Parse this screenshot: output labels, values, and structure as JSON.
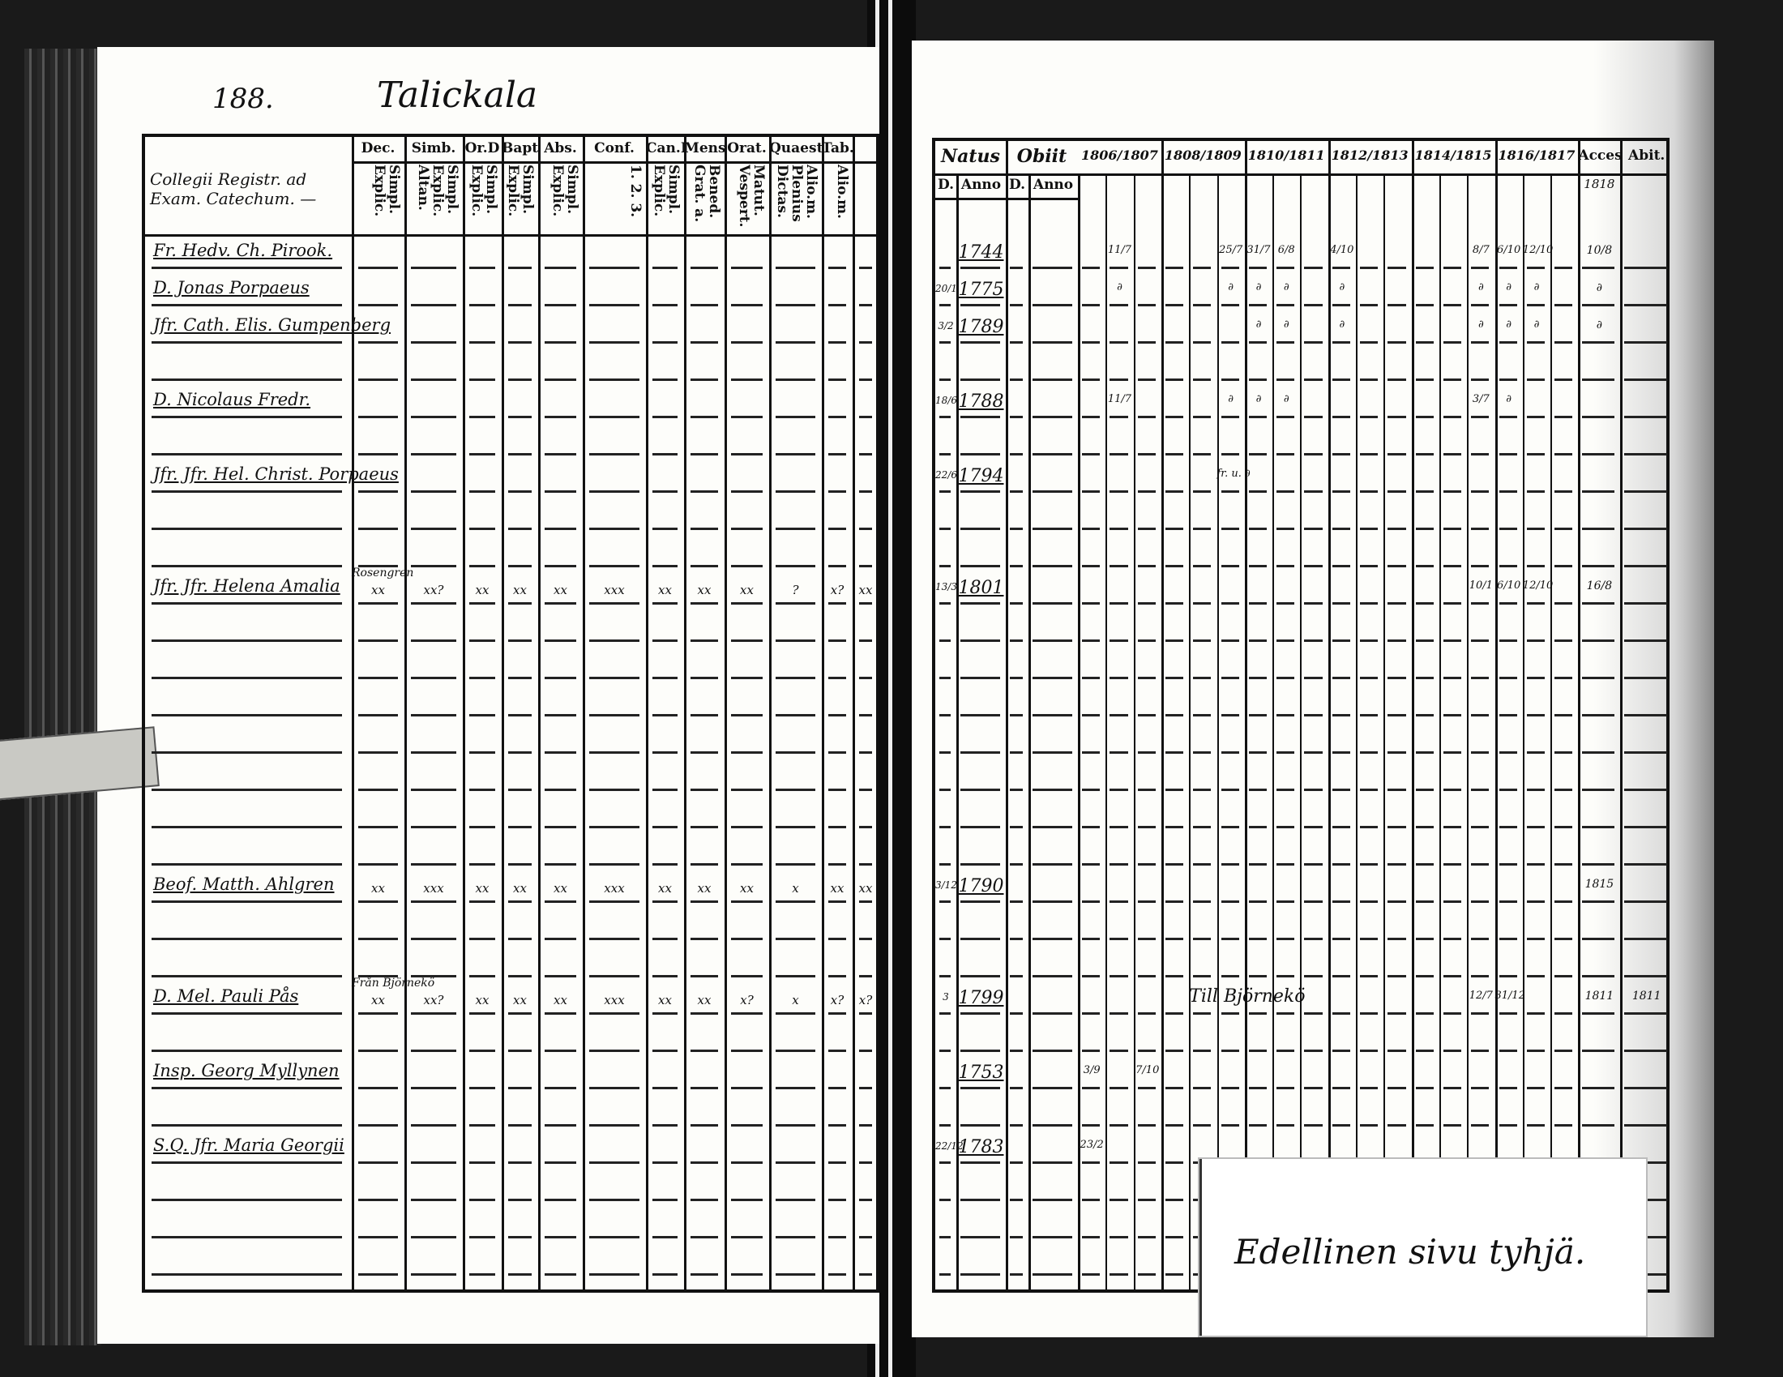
{
  "left_page": {
    "page_number": "188.",
    "village": "Talickala",
    "name_header": "Collegii Registr. ad Exam. Catechum. —",
    "columns": [
      {
        "head": "Dec.",
        "sub": "Simpl. Explic."
      },
      {
        "head": "Simb.",
        "sub": "Simpl. Explic. Altan."
      },
      {
        "head": "Or.D",
        "sub": "Simpl. Explic."
      },
      {
        "head": "Bapt.",
        "sub": "Simpl. Explic."
      },
      {
        "head": "Abs.",
        "sub": "Simpl. Explic."
      },
      {
        "head": "Conf.",
        "sub": "1. 2. 3."
      },
      {
        "head": "Can.D.",
        "sub": "Simpl. Explic."
      },
      {
        "head": "Mens.",
        "sub": "Bened. Grat. a."
      },
      {
        "head": "Orat.",
        "sub": "Matut. Vespert."
      },
      {
        "head": "Quaest.",
        "sub": "Alio.m. Plenius Dictas."
      },
      {
        "head": "Tab.",
        "sub": "Alio.m."
      },
      {
        "head": "",
        "sub": ""
      }
    ],
    "rows": [
      {
        "row": 0,
        "name": "Fr. Hedv. Ch. Pirook."
      },
      {
        "row": 1,
        "name": "D. Jonas Porpaeus"
      },
      {
        "row": 2,
        "name": "Jfr. Cath. Elis. Gumpenberg"
      },
      {
        "row": 4,
        "name": "D. Nicolaus Fredr."
      },
      {
        "row": 6,
        "name": "Jfr. Jfr. Hel. Christ. Porpaeus"
      },
      {
        "row": 9,
        "name": "Jfr. Jfr. Helena Amalia",
        "note": "Rosengren",
        "marks": [
          "xx",
          "xx?",
          "xx",
          "xx",
          "xx",
          "xxx",
          "xx",
          "xx",
          "xx",
          "?",
          "x?",
          "xx"
        ]
      },
      {
        "row": 17,
        "name": "Beof. Matth. Ahlgren",
        "marks": [
          "xx",
          "xxx",
          "xx",
          "xx",
          "xx",
          "xxx",
          "xx",
          "xx",
          "xx",
          "x",
          "xx",
          "xx"
        ]
      },
      {
        "row": 20,
        "name": "D. Mel. Pauli Pås",
        "note": "Från Björnekö",
        "marks": [
          "xx",
          "xx?",
          "xx",
          "xx",
          "xx",
          "xxx",
          "xx",
          "xx",
          "x?",
          "x",
          "x?",
          "x?"
        ]
      },
      {
        "row": 22,
        "name": "Insp. Georg Myllynen"
      },
      {
        "row": 24,
        "name": "S.Q. Jfr. Maria Georgii"
      }
    ]
  },
  "right_page": {
    "headers": {
      "natus": "Natus",
      "obiit": "Obiit",
      "d": "D.",
      "anno": "Anno",
      "acces": "Acces.",
      "abit": "Abit.",
      "acces_sub": "1818"
    },
    "years": [
      "1806/1807",
      "1808/1809",
      "1810/1811",
      "1812/1813",
      "1814/1815",
      "1816/1817"
    ],
    "rows": [
      {
        "row": 0,
        "natus_d": "",
        "anno": "1744",
        "marks": {
          "1": "11/7",
          "5": "25/7",
          "6": "31/7",
          "7": "6/8",
          "9": "4/10",
          "14": "8/7",
          "15": "6/10",
          "16": "12/10"
        },
        "acces": "10/8"
      },
      {
        "row": 1,
        "natus_d": "20/1",
        "anno": "1775",
        "marks": {
          "1": "∂",
          "5": "∂",
          "6": "∂",
          "7": "∂",
          "9": "∂",
          "14": "∂",
          "15": "∂",
          "16": "∂"
        },
        "acces": "∂"
      },
      {
        "row": 2,
        "natus_d": "3/2",
        "anno": "1789",
        "marks": {
          "6": "∂",
          "7": "∂",
          "9": "∂",
          "14": "∂",
          "15": "∂",
          "16": "∂"
        },
        "acces": "∂"
      },
      {
        "row": 4,
        "natus_d": "18/6",
        "anno": "1788",
        "marks": {
          "1": "11/7",
          "5": "∂",
          "6": "∂",
          "7": "∂",
          "14": "3/7",
          "15": "∂"
        }
      },
      {
        "row": 6,
        "natus_d": "22/6",
        "anno": "1794",
        "marks": {
          "5": "fr. u. ∂"
        }
      },
      {
        "row": 9,
        "natus_d": "13/3",
        "anno": "1801",
        "marks": {
          "14": "10/1",
          "15": "6/10",
          "16": "12/10"
        },
        "acces": "16/8"
      },
      {
        "row": 17,
        "natus_d": "3/12",
        "anno": "1790",
        "marks": {},
        "acces": "1815"
      },
      {
        "row": 20,
        "natus_d": "3",
        "anno": "1799",
        "marks": {
          "14": "12/7",
          "15": "31/12"
        },
        "remark": "Till Björnekö",
        "acces": "1811",
        "abit": "1811"
      },
      {
        "row": 22,
        "natus_d": "",
        "anno": "1753",
        "marks": {
          "0": "3/9",
          "2": "7/10"
        }
      },
      {
        "row": 24,
        "natus_d": "22/12",
        "anno": "1783",
        "marks": {
          "0": "23/2"
        }
      }
    ],
    "note": "Edellinen sivu tyhjä."
  }
}
